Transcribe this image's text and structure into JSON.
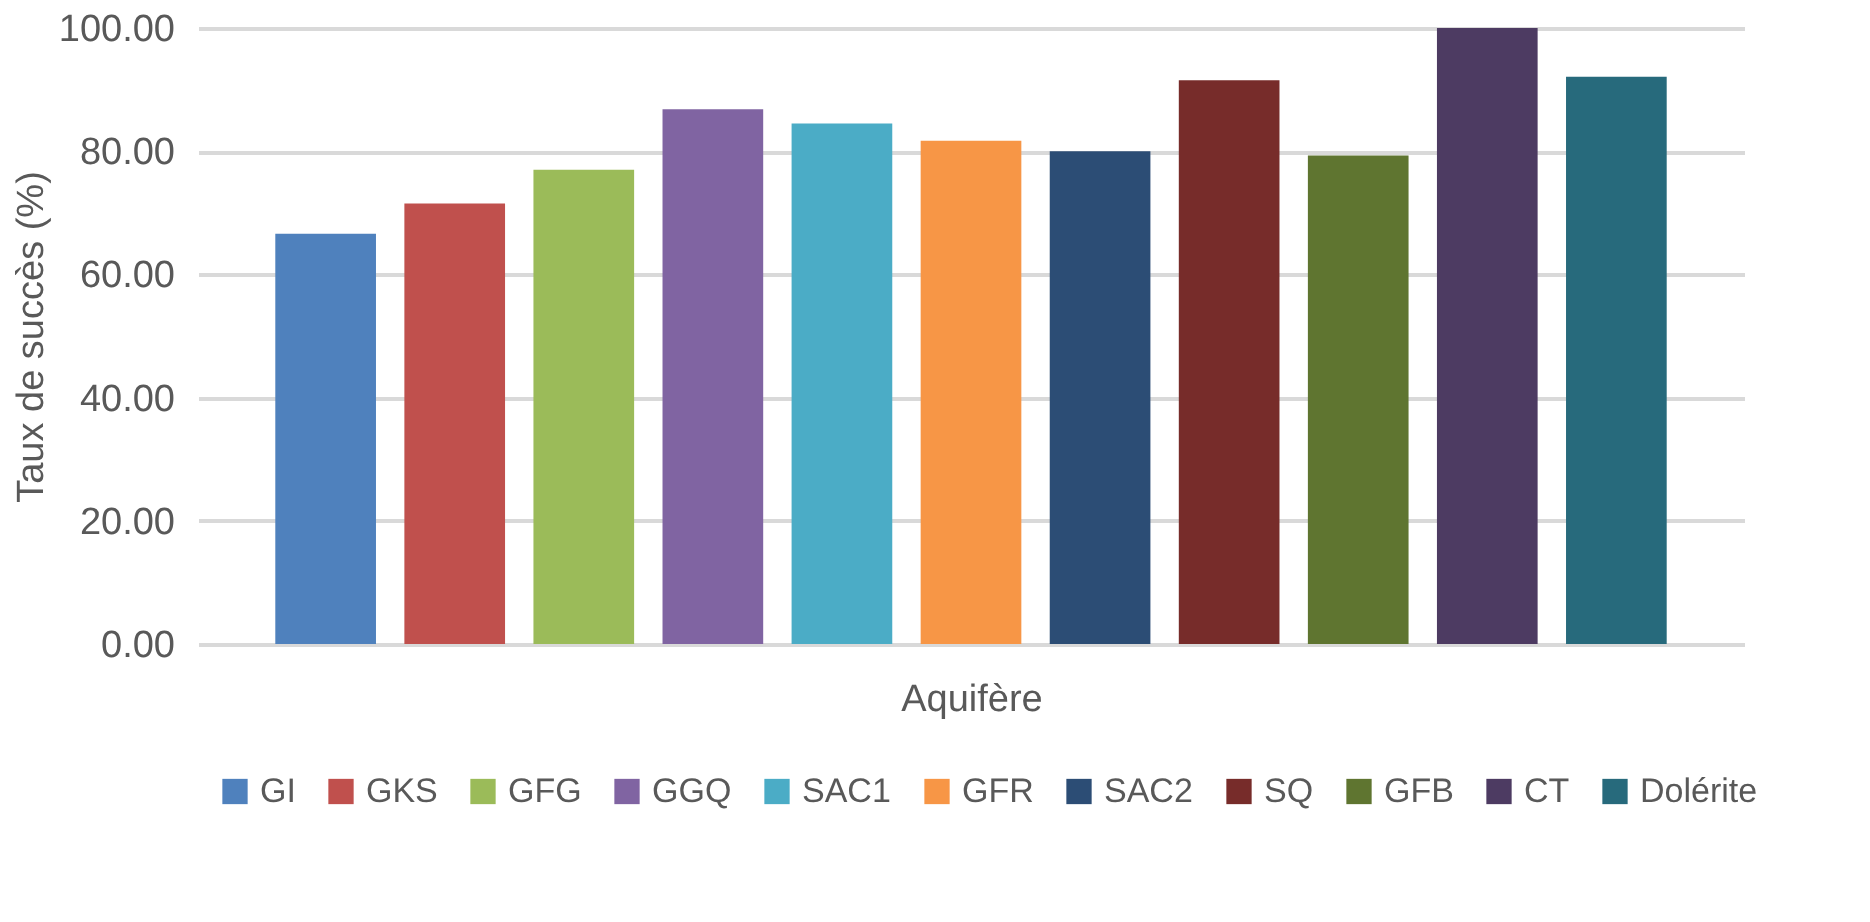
{
  "chart_data": {
    "type": "bar",
    "xlabel": "Aquifère",
    "ylabel": "Taux de succès (%)",
    "categories": [
      null
    ],
    "series": [
      {
        "name": "GI",
        "color": "#4f81bd",
        "values": [
          66.6
        ]
      },
      {
        "name": "GKS",
        "color": "#c0504d",
        "values": [
          71.5
        ]
      },
      {
        "name": "GFG",
        "color": "#9bbb59",
        "values": [
          77.0
        ]
      },
      {
        "name": "GGQ",
        "color": "#8064a2",
        "values": [
          86.8
        ]
      },
      {
        "name": "SAC1",
        "color": "#4bacc6",
        "values": [
          84.5
        ]
      },
      {
        "name": "GFR",
        "color": "#f79646",
        "values": [
          81.7
        ]
      },
      {
        "name": "SAC2",
        "color": "#2c4d75",
        "values": [
          80.0
        ]
      },
      {
        "name": "SQ",
        "color": "#772c2a",
        "values": [
          91.5
        ]
      },
      {
        "name": "GFB",
        "color": "#5f7530",
        "values": [
          79.3
        ]
      },
      {
        "name": "CT",
        "color": "#4d3b62",
        "values": [
          100.0
        ]
      },
      {
        "name": "Dolérite",
        "color": "#276a7c",
        "values": [
          92.1
        ]
      }
    ],
    "ylim": [
      0,
      100
    ],
    "yticks": [
      {
        "value": 0,
        "label": "0.00"
      },
      {
        "value": 20,
        "label": "20.00"
      },
      {
        "value": 40,
        "label": "40.00"
      },
      {
        "value": 60,
        "label": "60.00"
      },
      {
        "value": 80,
        "label": "80.00"
      },
      {
        "value": 100,
        "label": "100.00"
      }
    ],
    "grid": "y",
    "legend": "bottom",
    "tick_labels": "y"
  }
}
